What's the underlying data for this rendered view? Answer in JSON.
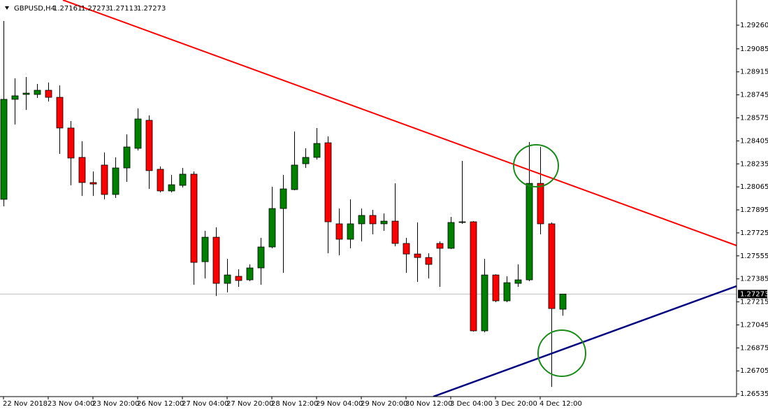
{
  "chart_data": {
    "type": "candlestick",
    "title": "GBPUSD,H4",
    "header_ohlc": [
      1.27161,
      1.27273,
      1.27113,
      1.27273
    ],
    "last_price": 1.27273,
    "up_color": "#008000",
    "down_color": "#ff0000",
    "categories": [
      "22 Nov 2018",
      null,
      null,
      null,
      "23 Nov 04:00",
      null,
      null,
      null,
      "23 Nov 20:00",
      null,
      null,
      null,
      "26 Nov 12:00",
      null,
      null,
      null,
      "27 Nov 04:00",
      null,
      null,
      null,
      "27 Nov 20:00",
      null,
      null,
      null,
      "28 Nov 12:00",
      null,
      null,
      null,
      "29 Nov 04:00",
      null,
      null,
      null,
      "29 Nov 20:00",
      null,
      null,
      null,
      "30 Nov 12:00",
      null,
      null,
      null,
      "3 Dec 04:00",
      null,
      null,
      null,
      "3 Dec 20:00",
      null,
      null,
      null,
      "4 Dec 12:00",
      null,
      null
    ],
    "open": [
      1.27973,
      1.28712,
      1.28748,
      1.28748,
      1.28779,
      1.28727,
      1.285,
      1.28283,
      1.28097,
      1.28226,
      1.28009,
      1.28205,
      1.2835,
      1.28557,
      1.28195,
      1.28035,
      1.28076,
      1.28159,
      1.27512,
      1.27693,
      1.27352,
      1.27404,
      1.27378,
      1.27466,
      1.27621,
      1.27905,
      1.28045,
      1.28236,
      1.28283,
      1.28391,
      1.27792,
      1.27678,
      1.27792,
      1.27854,
      1.27792,
      1.27812,
      1.27647,
      1.27569,
      1.27543,
      1.27647,
      1.27611,
      1.27802,
      1.27807,
      1.27001,
      1.27414,
      1.27223,
      1.27352,
      1.27378,
      1.28091,
      1.27792,
      1.27161
    ],
    "high": [
      1.29291,
      1.28867,
      1.28877,
      1.28826,
      1.28836,
      1.28815,
      1.28552,
      1.28402,
      1.28179,
      1.28319,
      1.28283,
      1.28453,
      1.28645,
      1.28593,
      1.28216,
      1.28153,
      1.28205,
      1.28179,
      1.2774,
      1.27766,
      1.27533,
      1.27456,
      1.27492,
      1.27688,
      1.28066,
      1.28153,
      1.28474,
      1.2835,
      1.285,
      1.28438,
      1.27905,
      1.27973,
      1.27905,
      1.27895,
      1.27869,
      1.28091,
      1.27688,
      1.27802,
      1.27574,
      1.27662,
      1.27843,
      1.28257,
      1.27812,
      1.27533,
      1.27419,
      1.27404,
      1.27492,
      1.28396,
      1.2836,
      1.27802,
      1.27273
    ],
    "low": [
      1.27921,
      1.28526,
      1.28634,
      1.28722,
      1.28696,
      1.28309,
      1.28076,
      1.27998,
      1.27998,
      1.27973,
      1.27983,
      1.28102,
      1.28334,
      1.2805,
      1.28024,
      1.28024,
      1.2806,
      1.27342,
      1.27388,
      1.27259,
      1.27285,
      1.27326,
      1.27368,
      1.27342,
      1.27611,
      1.2743,
      1.2804,
      1.28205,
      1.28267,
      1.27574,
      1.27559,
      1.27611,
      1.27662,
      1.27714,
      1.2774,
      1.27626,
      1.2743,
      1.27362,
      1.27388,
      1.27326,
      1.27605,
      1.27792,
      1.26995,
      1.2699,
      1.27213,
      1.27213,
      1.27326,
      1.27368,
      1.27714,
      1.26587,
      1.27113
    ],
    "close": [
      1.28712,
      1.28738,
      1.28758,
      1.28779,
      1.28727,
      1.285,
      1.28278,
      1.28097,
      1.28086,
      1.28009,
      1.28205,
      1.2836,
      1.28567,
      1.28185,
      1.28035,
      1.28081,
      1.28159,
      1.27507,
      1.27693,
      1.27352,
      1.27414,
      1.27373,
      1.27466,
      1.27621,
      1.27905,
      1.2805,
      1.28226,
      1.28283,
      1.28386,
      1.27807,
      1.27678,
      1.27792,
      1.27854,
      1.27792,
      1.27812,
      1.27647,
      1.27569,
      1.27543,
      1.27492,
      1.27611,
      1.27802,
      1.27807,
      1.27001,
      1.27414,
      1.27223,
      1.27357,
      1.27378,
      1.28091,
      1.27792,
      1.27166,
      1.27273
    ],
    "ylim": [
      1.26515,
      1.29446
    ],
    "yticks": [
      {
        "value": 1.2926,
        "label": "1.29260"
      },
      1.29085,
      1.28915,
      1.28745,
      1.28575,
      1.28405,
      1.28235,
      1.28065,
      1.27895,
      1.27725,
      1.27555,
      1.27385,
      1.27215,
      1.27045,
      1.26875,
      1.26705,
      1.26535
    ],
    "grid": false
  }
}
